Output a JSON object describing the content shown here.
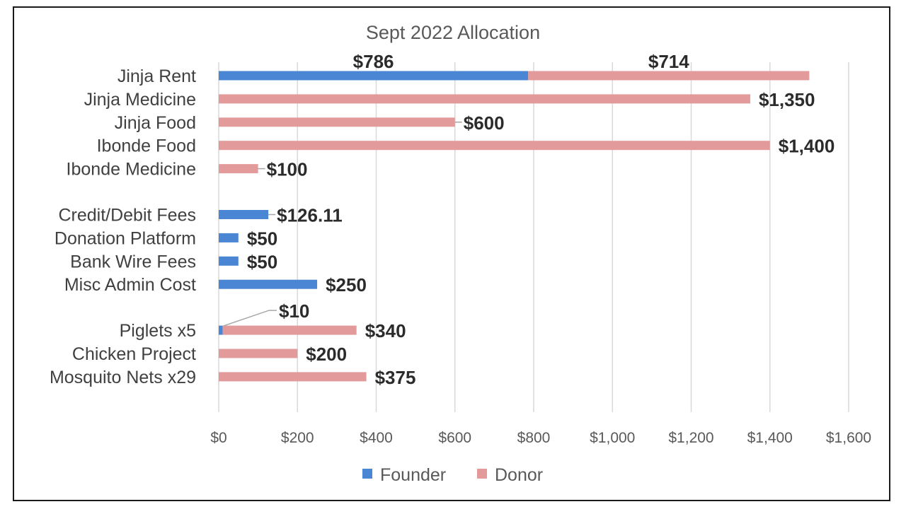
{
  "chart_data": {
    "type": "bar",
    "orientation": "horizontal",
    "stacked": true,
    "title": "Sept 2022 Allocation",
    "categories": [
      "Jinja Rent",
      "Jinja Medicine",
      "Jinja Food",
      "Ibonde Food",
      "Ibonde Medicine",
      "Credit/Debit Fees",
      "Donation Platform",
      "Bank Wire Fees",
      "Misc Admin Cost",
      "Piglets x5",
      "Chicken Project",
      "Mosquito Nets x29"
    ],
    "groups": [
      [
        0,
        1,
        2,
        3,
        4
      ],
      [
        5,
        6,
        7,
        8
      ],
      [
        9,
        10,
        11
      ]
    ],
    "series": [
      {
        "name": "Founder",
        "color": "#4a86d4",
        "values": [
          786,
          0,
          0,
          0,
          0,
          126.11,
          50,
          50,
          250,
          10,
          0,
          0
        ]
      },
      {
        "name": "Donor",
        "color": "#e39a9a",
        "values": [
          714,
          1350,
          600,
          1400,
          100,
          0,
          0,
          0,
          0,
          340,
          200,
          375
        ]
      }
    ],
    "data_labels": [
      {
        "category": "Jinja Rent",
        "series": "Founder",
        "text": "$786"
      },
      {
        "category": "Jinja Rent",
        "series": "Donor",
        "text": "$714"
      },
      {
        "category": "Jinja Medicine",
        "series": "Donor",
        "text": "$1,350"
      },
      {
        "category": "Jinja Food",
        "series": "Donor",
        "text": "$600"
      },
      {
        "category": "Ibonde Food",
        "series": "Donor",
        "text": "$1,400"
      },
      {
        "category": "Ibonde Medicine",
        "series": "Donor",
        "text": "$100"
      },
      {
        "category": "Credit/Debit Fees",
        "series": "Founder",
        "text": "$126.11"
      },
      {
        "category": "Donation Platform",
        "series": "Founder",
        "text": "$50"
      },
      {
        "category": "Bank Wire Fees",
        "series": "Founder",
        "text": "$50"
      },
      {
        "category": "Misc Admin Cost",
        "series": "Founder",
        "text": "$250"
      },
      {
        "category": "Piglets x5",
        "series": "Founder",
        "text": "$10"
      },
      {
        "category": "Piglets x5",
        "series": "Donor",
        "text": "$340"
      },
      {
        "category": "Chicken Project",
        "series": "Donor",
        "text": "$200"
      },
      {
        "category": "Mosquito Nets x29",
        "series": "Donor",
        "text": "$375"
      }
    ],
    "x_ticks": [
      "$0",
      "$200",
      "$400",
      "$600",
      "$800",
      "$1,000",
      "$1,200",
      "$1,400",
      "$1,600"
    ],
    "xlim": [
      0,
      1600
    ],
    "grid": true,
    "legend": "bottom"
  }
}
